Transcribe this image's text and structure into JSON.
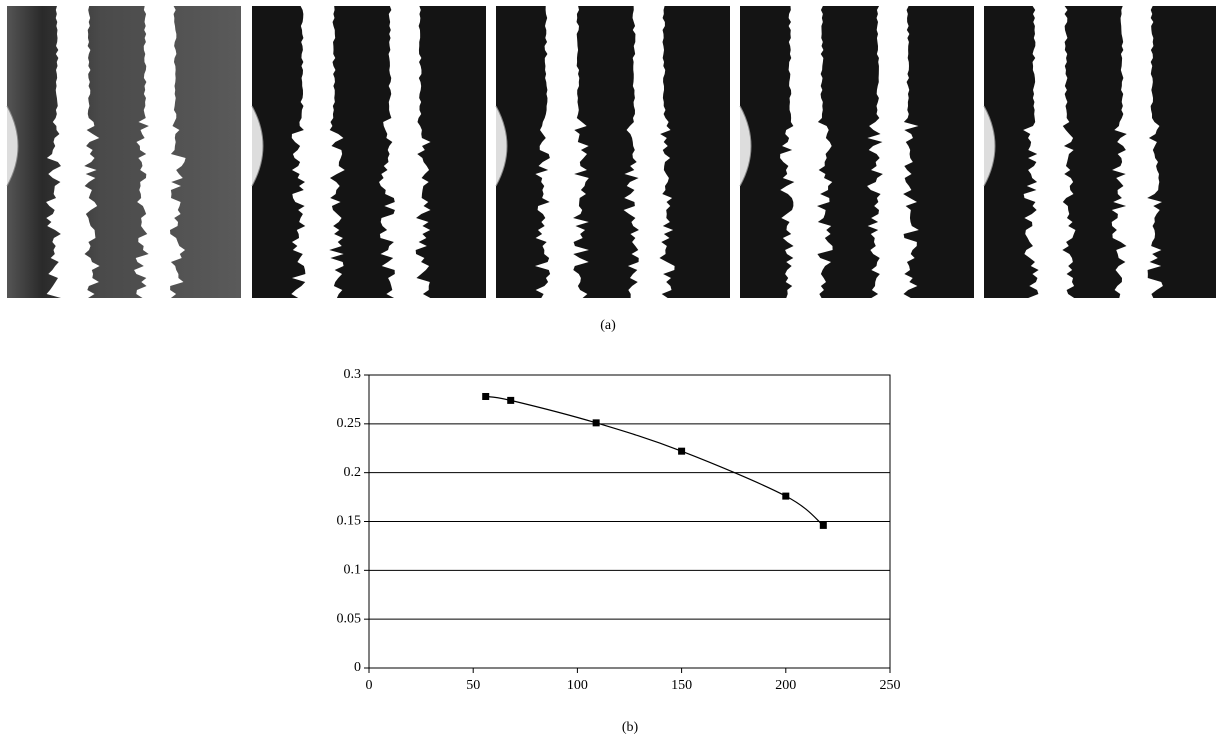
{
  "figure": {
    "panel_a_label": "(a)",
    "panel_b_label": "(b)"
  },
  "chart_data": {
    "type": "line",
    "x": [
      56,
      68,
      109,
      150,
      200,
      218
    ],
    "values": [
      0.278,
      0.274,
      0.251,
      0.222,
      0.176,
      0.146
    ],
    "color": "#000000",
    "marker": "square",
    "smooth": true,
    "xlim": [
      0,
      250
    ],
    "xticks": [
      0,
      50,
      100,
      150,
      200,
      250
    ],
    "ylim": [
      0,
      0.3
    ],
    "yticks": [
      0,
      0.05,
      0.1,
      0.15,
      0.2,
      0.25,
      0.3
    ],
    "grid": "y"
  }
}
